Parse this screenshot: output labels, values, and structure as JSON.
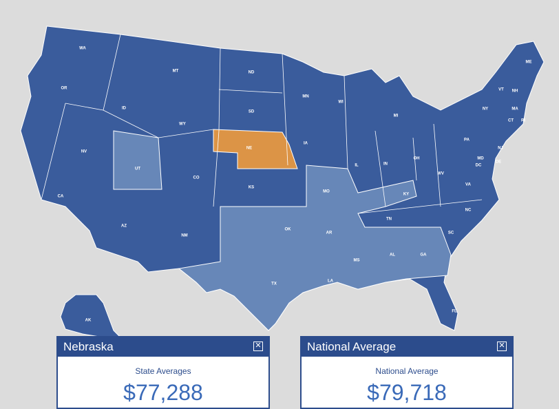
{
  "state_labels": [
    "WA",
    "OR",
    "CA",
    "NV",
    "ID",
    "MT",
    "WY",
    "UT",
    "CO",
    "AZ",
    "NM",
    "ND",
    "SD",
    "NE",
    "KS",
    "OK",
    "TX",
    "MN",
    "IA",
    "MO",
    "AR",
    "LA",
    "WI",
    "IL",
    "MI",
    "IN",
    "OH",
    "KY",
    "TN",
    "MS",
    "AL",
    "GA",
    "FL",
    "SC",
    "NC",
    "VA",
    "WV",
    "PA",
    "NY",
    "VT",
    "NH",
    "ME",
    "MA",
    "CT",
    "RI",
    "NJ",
    "DE",
    "MD",
    "DC",
    "AK"
  ],
  "panels": [
    {
      "title": "Nebraska",
      "label": "State Averages",
      "value": "$77,288"
    },
    {
      "title": "National Average",
      "label": "National Average",
      "value": "$79,718"
    }
  ]
}
